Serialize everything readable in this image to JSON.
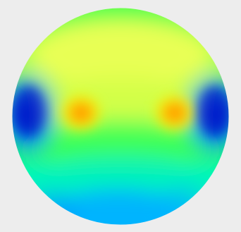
{
  "chart_data": {
    "type": "heatmap",
    "shape": "circle",
    "title": "",
    "legend": "none",
    "colormap": [
      "#0000b8",
      "#0044ff",
      "#00b4ff",
      "#00f0c0",
      "#33ff55",
      "#b6ff40",
      "#ecff55",
      "#ffd400",
      "#ff8e00"
    ],
    "background_color": "#ededed",
    "features": [
      {
        "label": "left-high",
        "level": "high"
      },
      {
        "label": "right-high",
        "level": "high"
      },
      {
        "label": "left-edge-low",
        "level": "low"
      },
      {
        "label": "right-edge-low",
        "level": "low"
      },
      {
        "label": "bottom-low-zone",
        "level": "low"
      }
    ]
  }
}
